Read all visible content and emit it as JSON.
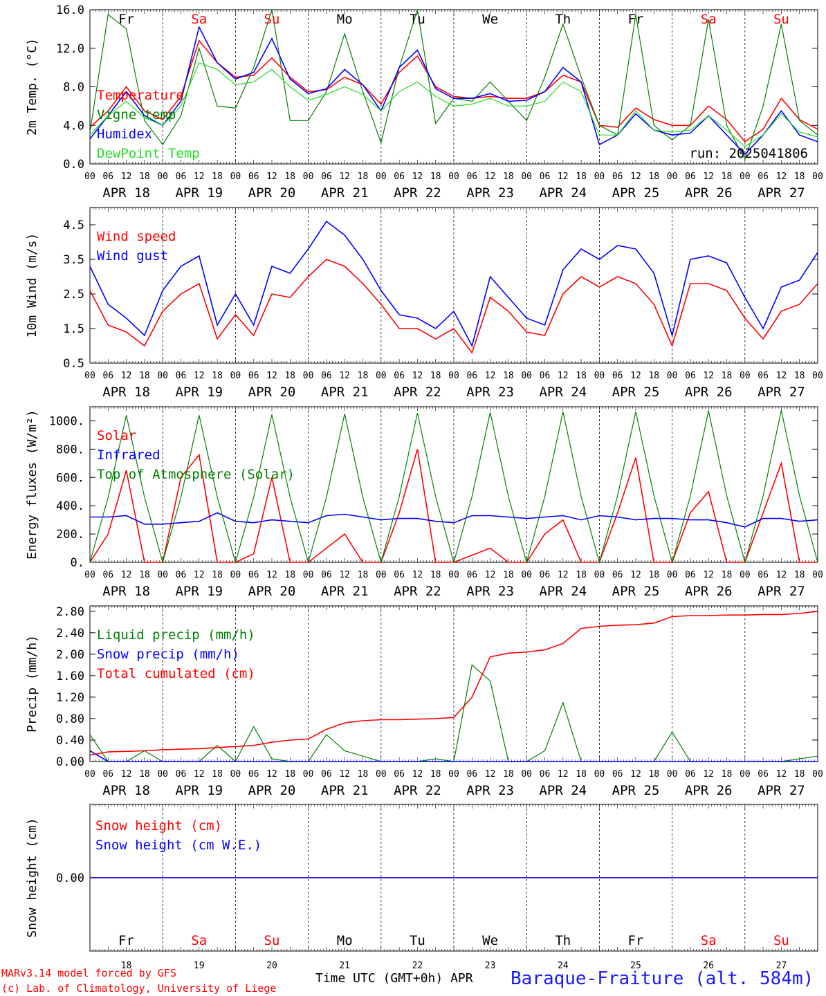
{
  "meta": {
    "run": "run: 2025041806",
    "model_credit": "MARv3.14 model forced by GFS",
    "lab_credit": "(c) Lab. of Climatology, University of Liege",
    "time_label": "Time UTC (GMT+0h)",
    "month_label": "APR",
    "station": "Baraque-Fraiture (alt. 584m)"
  },
  "colors": {
    "red": "#ff0000",
    "green": "#008000",
    "blue": "#0000ff",
    "lime": "#22dd22"
  },
  "days": [
    {
      "label": "Fr",
      "weekend": false,
      "date": "APR 18",
      "num": "18"
    },
    {
      "label": "Sa",
      "weekend": true,
      "date": "APR 19",
      "num": "19"
    },
    {
      "label": "Su",
      "weekend": true,
      "date": "APR 20",
      "num": "20"
    },
    {
      "label": "Mo",
      "weekend": false,
      "date": "APR 21",
      "num": "21"
    },
    {
      "label": "Tu",
      "weekend": false,
      "date": "APR 22",
      "num": "22"
    },
    {
      "label": "We",
      "weekend": false,
      "date": "APR 23",
      "num": "23"
    },
    {
      "label": "Th",
      "weekend": false,
      "date": "APR 24",
      "num": "24"
    },
    {
      "label": "Fr",
      "weekend": false,
      "date": "APR 25",
      "num": "25"
    },
    {
      "label": "Sa",
      "weekend": true,
      "date": "APR 26",
      "num": "26"
    },
    {
      "label": "Su",
      "weekend": true,
      "date": "APR 27",
      "num": "27"
    }
  ],
  "hour_ticks": [
    "00",
    "06",
    "12",
    "18"
  ],
  "chart_data": [
    {
      "type": "line",
      "ylabel": "2m Temp. (°C)",
      "ylim": [
        0,
        16
      ],
      "yticks": [
        0,
        4,
        8,
        12,
        16
      ],
      "ytick_labels": [
        "0.0",
        "4.0",
        "8.0",
        "12.0",
        "16.0"
      ],
      "x_hours": [
        0,
        6,
        12,
        18,
        24,
        30,
        36,
        42,
        48,
        54,
        60,
        66,
        72,
        78,
        84,
        90,
        96,
        102,
        108,
        114,
        120,
        126,
        132,
        138,
        144,
        150,
        156,
        162,
        168,
        174,
        180,
        186,
        192,
        198,
        204,
        210,
        216,
        222,
        228,
        234,
        240
      ],
      "series": [
        {
          "name": "Temperature",
          "color": "red",
          "values": [
            3.8,
            5.5,
            8.0,
            5.5,
            4.6,
            7.0,
            12.8,
            10.5,
            9.0,
            9.2,
            11.0,
            9.0,
            7.5,
            7.7,
            9.0,
            8.2,
            6.2,
            9.5,
            11.2,
            8.0,
            7.0,
            6.8,
            7.0,
            6.8,
            6.8,
            7.5,
            9.2,
            8.5,
            4.0,
            3.8,
            5.8,
            4.6,
            4.0,
            4.0,
            6.0,
            4.6,
            2.3,
            3.6,
            6.8,
            4.6,
            3.6
          ]
        },
        {
          "name": "Vigne temp",
          "color": "green",
          "values": [
            3.3,
            15.5,
            14.0,
            4.5,
            2.0,
            5.0,
            12.0,
            6.0,
            5.8,
            10.0,
            16.0,
            4.5,
            4.5,
            7.5,
            13.5,
            7.5,
            2.2,
            10.0,
            16.0,
            4.2,
            6.8,
            6.5,
            8.5,
            6.5,
            4.5,
            9.0,
            14.5,
            9.0,
            4.0,
            3.0,
            15.5,
            4.0,
            2.5,
            4.0,
            15.0,
            4.0,
            0.5,
            6.0,
            14.5,
            4.5,
            3.0
          ]
        },
        {
          "name": "Humidex",
          "color": "blue",
          "values": [
            2.6,
            5.0,
            7.5,
            5.0,
            4.0,
            6.5,
            14.2,
            10.5,
            8.8,
            9.5,
            13.0,
            8.8,
            7.3,
            7.8,
            9.8,
            8.2,
            5.5,
            10.0,
            11.8,
            7.8,
            6.8,
            6.8,
            7.3,
            6.5,
            6.6,
            7.5,
            10.0,
            8.5,
            2.0,
            3.0,
            5.2,
            3.5,
            3.0,
            3.2,
            5.0,
            3.0,
            1.0,
            3.0,
            5.5,
            3.0,
            2.3
          ]
        },
        {
          "name": "DewPoint Temp",
          "color": "lime",
          "values": [
            3.0,
            5.0,
            6.5,
            4.8,
            4.0,
            6.0,
            10.5,
            9.8,
            8.2,
            8.5,
            9.8,
            8.0,
            6.6,
            7.2,
            8.0,
            7.2,
            5.5,
            7.5,
            8.5,
            7.0,
            6.0,
            6.2,
            6.8,
            6.0,
            6.0,
            6.5,
            8.5,
            7.5,
            3.0,
            3.0,
            5.5,
            3.5,
            3.3,
            3.5,
            5.0,
            3.5,
            1.8,
            3.0,
            5.2,
            3.3,
            2.8
          ]
        }
      ]
    },
    {
      "type": "line",
      "ylabel": "10m Wind (m/s)",
      "ylim": [
        0.5,
        5.0
      ],
      "yticks": [
        0.5,
        1.5,
        2.5,
        3.5,
        4.5
      ],
      "ytick_labels": [
        "0.5",
        "1.5",
        "2.5",
        "3.5",
        "4.5"
      ],
      "x_hours": [
        0,
        6,
        12,
        18,
        24,
        30,
        36,
        42,
        48,
        54,
        60,
        66,
        72,
        78,
        84,
        90,
        96,
        102,
        108,
        114,
        120,
        126,
        132,
        138,
        144,
        150,
        156,
        162,
        168,
        174,
        180,
        186,
        192,
        198,
        204,
        210,
        216,
        222,
        228,
        234,
        240
      ],
      "series": [
        {
          "name": "Wind speed",
          "color": "red",
          "values": [
            2.6,
            1.6,
            1.4,
            1.0,
            2.0,
            2.5,
            2.8,
            1.2,
            1.9,
            1.3,
            2.5,
            2.4,
            3.0,
            3.5,
            3.3,
            2.8,
            2.2,
            1.5,
            1.5,
            1.2,
            1.5,
            0.8,
            2.4,
            2.0,
            1.4,
            1.3,
            2.5,
            3.0,
            2.7,
            3.0,
            2.8,
            2.2,
            1.0,
            2.8,
            2.8,
            2.6,
            1.8,
            1.2,
            2.0,
            2.2,
            2.8
          ]
        },
        {
          "name": "Wind gust",
          "color": "blue",
          "values": [
            3.3,
            2.2,
            1.8,
            1.3,
            2.6,
            3.3,
            3.6,
            1.6,
            2.5,
            1.6,
            3.3,
            3.1,
            3.8,
            4.6,
            4.2,
            3.5,
            2.6,
            1.9,
            1.8,
            1.5,
            2.0,
            1.0,
            3.0,
            2.4,
            1.8,
            1.6,
            3.2,
            3.8,
            3.5,
            3.9,
            3.8,
            3.1,
            1.3,
            3.5,
            3.6,
            3.4,
            2.4,
            1.5,
            2.7,
            2.9,
            3.7
          ]
        }
      ]
    },
    {
      "type": "line",
      "ylabel": "Energy fluxes (W/m²)",
      "ylim": [
        0,
        1100
      ],
      "yticks": [
        0,
        200,
        400,
        600,
        800,
        1000
      ],
      "ytick_labels": [
        "0.",
        "200.",
        "400.",
        "600.",
        "800.",
        "1000."
      ],
      "x_hours": [
        0,
        6,
        12,
        18,
        24,
        30,
        36,
        42,
        48,
        54,
        60,
        66,
        72,
        78,
        84,
        90,
        96,
        102,
        108,
        114,
        120,
        126,
        132,
        138,
        144,
        150,
        156,
        162,
        168,
        174,
        180,
        186,
        192,
        198,
        204,
        210,
        216,
        222,
        228,
        234,
        240
      ],
      "series": [
        {
          "name": "Solar",
          "color": "red",
          "values": [
            0,
            200,
            650,
            0,
            0,
            600,
            760,
            0,
            0,
            60,
            600,
            0,
            0,
            100,
            200,
            0,
            0,
            350,
            800,
            0,
            0,
            50,
            100,
            0,
            0,
            200,
            300,
            0,
            0,
            350,
            740,
            0,
            0,
            350,
            500,
            0,
            0,
            350,
            700,
            0,
            0
          ]
        },
        {
          "name": "Infrared",
          "color": "blue",
          "values": [
            320,
            320,
            330,
            270,
            270,
            280,
            290,
            350,
            290,
            280,
            300,
            290,
            280,
            330,
            340,
            320,
            300,
            310,
            310,
            290,
            280,
            330,
            330,
            320,
            310,
            320,
            330,
            300,
            330,
            320,
            300,
            310,
            310,
            300,
            300,
            280,
            250,
            310,
            310,
            290,
            300
          ]
        },
        {
          "name": "Top of Atmosphere (Solar)",
          "color": "green",
          "values": [
            0,
            460,
            1040,
            460,
            0,
            460,
            1040,
            460,
            0,
            460,
            1045,
            460,
            0,
            460,
            1050,
            460,
            0,
            465,
            1055,
            465,
            0,
            465,
            1060,
            465,
            0,
            465,
            1065,
            465,
            0,
            470,
            1065,
            470,
            0,
            470,
            1070,
            470,
            0,
            470,
            1075,
            470,
            0
          ]
        }
      ]
    },
    {
      "type": "line",
      "ylabel": "Precip (mm/h)",
      "ylim": [
        0,
        2.9
      ],
      "yticks": [
        0,
        0.4,
        0.8,
        1.2,
        1.6,
        2.0,
        2.4,
        2.8
      ],
      "ytick_labels": [
        "0.00",
        "0.40",
        "0.80",
        "1.20",
        "1.60",
        "2.00",
        "2.40",
        "2.80"
      ],
      "x_hours": [
        0,
        6,
        12,
        18,
        24,
        30,
        36,
        42,
        48,
        54,
        60,
        66,
        72,
        78,
        84,
        90,
        96,
        102,
        108,
        114,
        120,
        126,
        132,
        138,
        144,
        150,
        156,
        162,
        168,
        174,
        180,
        186,
        192,
        198,
        204,
        210,
        216,
        222,
        228,
        234,
        240
      ],
      "series": [
        {
          "name": "Liquid precip (mm/h)",
          "color": "green",
          "values": [
            0.5,
            0.0,
            0.0,
            0.2,
            0.0,
            0.0,
            0.0,
            0.3,
            0.0,
            0.65,
            0.05,
            0.0,
            0.0,
            0.5,
            0.2,
            0.1,
            0.0,
            0.0,
            0.0,
            0.05,
            0.0,
            1.8,
            1.5,
            0.0,
            0.0,
            0.2,
            1.1,
            0.0,
            0.0,
            0.0,
            0.0,
            0.0,
            0.55,
            0.0,
            0.0,
            0.0,
            0.0,
            0.0,
            0.0,
            0.05,
            0.1
          ]
        },
        {
          "name": "Snow precip (mm/h)",
          "color": "blue",
          "values": [
            0.2,
            0.0,
            0.0,
            0.0,
            0.0,
            0.0,
            0.0,
            0.0,
            0.0,
            0.0,
            0.0,
            0.0,
            0.0,
            0.0,
            0.0,
            0.0,
            0.0,
            0.0,
            0.0,
            0.0,
            0.0,
            0.0,
            0.0,
            0.0,
            0.0,
            0.0,
            0.0,
            0.0,
            0.0,
            0.0,
            0.0,
            0.0,
            0.0,
            0.0,
            0.0,
            0.0,
            0.0,
            0.0,
            0.0,
            0.0,
            0.0
          ]
        },
        {
          "name": "Total cumulated (cm)",
          "color": "red",
          "values": [
            0.12,
            0.18,
            0.19,
            0.2,
            0.22,
            0.23,
            0.24,
            0.26,
            0.28,
            0.3,
            0.36,
            0.4,
            0.42,
            0.6,
            0.72,
            0.76,
            0.78,
            0.78,
            0.79,
            0.8,
            0.82,
            1.2,
            1.95,
            2.02,
            2.04,
            2.08,
            2.2,
            2.48,
            2.52,
            2.54,
            2.55,
            2.58,
            2.7,
            2.72,
            2.72,
            2.73,
            2.73,
            2.74,
            2.74,
            2.76,
            2.8
          ]
        }
      ]
    },
    {
      "type": "line",
      "ylabel": "Snow height (cm)",
      "ylim": [
        -1,
        1
      ],
      "yticks": [
        0
      ],
      "ytick_labels": [
        "0.00"
      ],
      "x_hours": [
        0,
        240
      ],
      "series": [
        {
          "name": "Snow height (cm)",
          "color": "red",
          "values": [
            0,
            0
          ]
        },
        {
          "name": "Snow height (cm W.E.)",
          "color": "blue",
          "values": [
            0,
            0
          ]
        }
      ]
    }
  ]
}
